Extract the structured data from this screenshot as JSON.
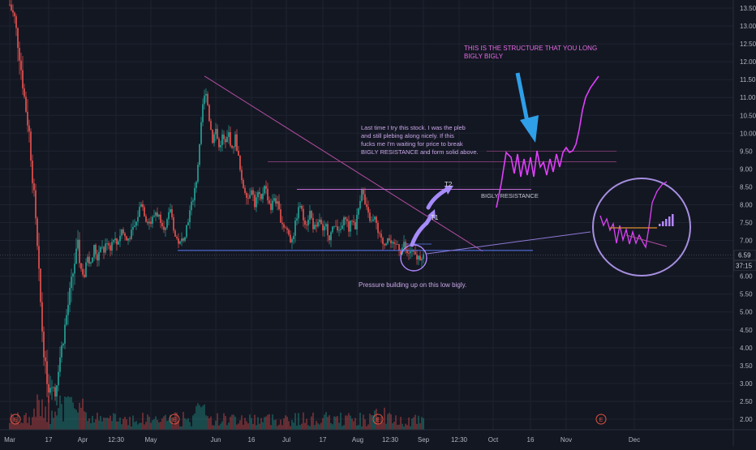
{
  "chart_data": {
    "type": "candlestick",
    "title": "",
    "y_axis": {
      "ticks": [
        "13.50",
        "13.00",
        "12.50",
        "12.00",
        "11.50",
        "11.00",
        "10.50",
        "10.00",
        "9.50",
        "9.00",
        "8.50",
        "8.00",
        "7.50",
        "7.00",
        "6.50",
        "6.00",
        "5.50",
        "5.00",
        "4.50",
        "4.00",
        "3.50",
        "3.00",
        "2.50",
        "2.00"
      ],
      "range": [
        1.8,
        13.7
      ],
      "position": "right"
    },
    "x_axis": {
      "ticks": [
        "Mar",
        "17",
        "Apr",
        "12:30",
        "May",
        "Jun",
        "16",
        "Jul",
        "17",
        "Aug",
        "12:30",
        "Sep",
        "12:30",
        "Oct",
        "16",
        "Nov",
        "Dec"
      ]
    },
    "last_price": "6.59",
    "countdown": "37:15",
    "price_series_approx": [
      {
        "x": "Mar",
        "high": 13.7,
        "low": 11.8
      },
      {
        "x": "17",
        "high": 7.5,
        "low": 2.6
      },
      {
        "x": "Apr",
        "high": 7.8,
        "low": 5.5
      },
      {
        "x": "12:30",
        "high": 7.9,
        "low": 6.3
      },
      {
        "x": "May",
        "high": 8.3,
        "low": 6.6
      },
      {
        "x": "Jun",
        "high": 11.6,
        "low": 8.0
      },
      {
        "x": "16",
        "high": 9.2,
        "low": 7.8
      },
      {
        "x": "Jul",
        "high": 8.4,
        "low": 6.8
      },
      {
        "x": "17",
        "high": 8.0,
        "low": 6.9
      },
      {
        "x": "Aug",
        "high": 8.7,
        "low": 7.0
      },
      {
        "x": "12:30",
        "high": 7.5,
        "low": 6.4
      },
      {
        "x": "Sep",
        "high": 7.0,
        "low": 6.4
      }
    ],
    "grid": true,
    "earnings_markers": [
      "E",
      "E",
      "E",
      "E"
    ],
    "annotations": {
      "structure_note": "THIS IS THE STRUCTURE THAT YOU LONG\nBIGLY BIGLY",
      "story_note": "Last time I try this stock. I was the pleb\nand still plebing along nicely. If this\nfucks me I'm waiting for price to break\nBIGLY RESISTANCE and form solid above.",
      "resistance_label": "BIGLY RESISTANCE",
      "t1": "T1",
      "t2": "T2",
      "pressure_note": "Pressure building up on this low bigly."
    },
    "colors": {
      "background": "#131722",
      "up": "#26a69a",
      "down": "#ef5350",
      "annotation_purple": "#b388ff",
      "annotation_magenta": "#e040fb",
      "arrow_blue": "#2f9fe8",
      "level_line": "#5c7cfa"
    }
  }
}
